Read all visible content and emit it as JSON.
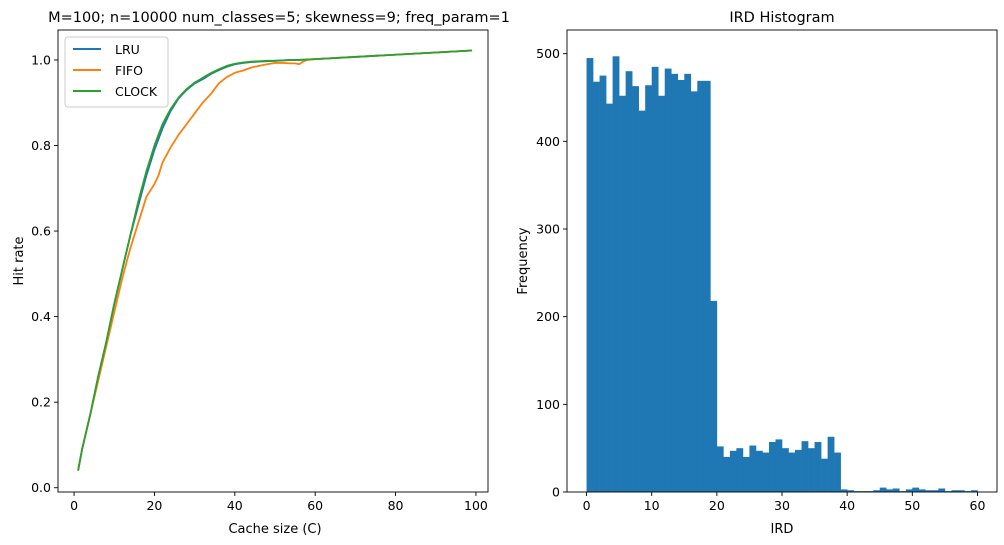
{
  "chart_data": [
    {
      "type": "line",
      "title": "M=100; n=10000 num_classes=5; skewness=9; freq_param=1",
      "xlabel": "Cache size (C)",
      "ylabel": "Hit rate",
      "xlim": [
        -4,
        103
      ],
      "ylim": [
        -0.01,
        1.07
      ],
      "xticks": [
        0,
        20,
        40,
        60,
        80,
        100
      ],
      "xtick_labels": [
        "0",
        "20",
        "40",
        "60",
        "80",
        "100"
      ],
      "yticks": [
        0.0,
        0.2,
        0.4,
        0.6,
        0.8,
        1.0
      ],
      "ytick_labels": [
        "0.0",
        "0.2",
        "0.4",
        "0.6",
        "0.8",
        "1.0"
      ],
      "grid": false,
      "legend_position": "upper-left",
      "series": [
        {
          "name": "LRU",
          "color": "#1f77b4",
          "x": [
            1,
            2,
            4,
            6,
            8,
            10,
            12,
            14,
            16,
            18,
            20,
            22,
            24,
            26,
            28,
            30,
            32,
            34,
            36,
            38,
            40,
            42,
            44,
            46,
            48,
            50,
            52,
            54,
            56,
            58,
            60,
            99
          ],
          "y": [
            0.04,
            0.09,
            0.17,
            0.26,
            0.34,
            0.43,
            0.51,
            0.59,
            0.66,
            0.73,
            0.79,
            0.84,
            0.88,
            0.91,
            0.93,
            0.945,
            0.955,
            0.967,
            0.976,
            0.984,
            0.99,
            0.993,
            0.995,
            0.996,
            0.997,
            0.998,
            0.999,
            1.0,
            1.0,
            1.001,
            1.002,
            1.022
          ]
        },
        {
          "name": "FIFO",
          "color": "#ff7f0e",
          "x": [
            1,
            2,
            4,
            6,
            8,
            10,
            12,
            14,
            16,
            18,
            20,
            21,
            22,
            24,
            26,
            28,
            30,
            32,
            34,
            36,
            38,
            40,
            42,
            44,
            46,
            48,
            50,
            52,
            54,
            55,
            56,
            57,
            58,
            60,
            99
          ],
          "y": [
            0.04,
            0.09,
            0.17,
            0.25,
            0.33,
            0.41,
            0.49,
            0.56,
            0.62,
            0.68,
            0.71,
            0.73,
            0.76,
            0.795,
            0.825,
            0.85,
            0.875,
            0.9,
            0.92,
            0.945,
            0.96,
            0.97,
            0.975,
            0.982,
            0.986,
            0.99,
            0.993,
            0.993,
            0.992,
            0.992,
            0.99,
            0.996,
            1.0,
            1.002,
            1.022
          ]
        },
        {
          "name": "CLOCK",
          "color": "#2ca02c",
          "x": [
            1,
            2,
            4,
            6,
            8,
            10,
            12,
            14,
            16,
            18,
            20,
            22,
            24,
            26,
            28,
            30,
            32,
            34,
            36,
            38,
            40,
            42,
            44,
            46,
            48,
            50,
            52,
            54,
            56,
            58,
            60,
            99
          ],
          "y": [
            0.04,
            0.09,
            0.17,
            0.26,
            0.34,
            0.43,
            0.51,
            0.59,
            0.67,
            0.74,
            0.8,
            0.85,
            0.885,
            0.912,
            0.932,
            0.947,
            0.958,
            0.969,
            0.978,
            0.986,
            0.991,
            0.994,
            0.996,
            0.997,
            0.998,
            0.998,
            0.999,
            1.0,
            1.0,
            1.001,
            1.002,
            1.022
          ]
        }
      ]
    },
    {
      "type": "bar",
      "title": "IRD Histogram",
      "xlabel": "IRD",
      "ylabel": "Frequency",
      "xlim": [
        -3,
        63
      ],
      "ylim": [
        0,
        527
      ],
      "xticks": [
        0,
        10,
        20,
        30,
        40,
        50,
        60
      ],
      "xtick_labels": [
        "0",
        "10",
        "20",
        "30",
        "40",
        "50",
        "60"
      ],
      "yticks": [
        0,
        100,
        200,
        300,
        400,
        500
      ],
      "ytick_labels": [
        "0",
        "100",
        "200",
        "300",
        "400",
        "500"
      ],
      "grid": false,
      "color": "#1f77b4",
      "bin_start": 0,
      "bin_width": 1,
      "values": [
        495,
        468,
        475,
        443,
        497,
        452,
        480,
        463,
        435,
        464,
        485,
        452,
        483,
        477,
        470,
        477,
        457,
        469,
        469,
        218,
        52,
        40,
        47,
        50,
        40,
        53,
        47,
        45,
        57,
        60,
        50,
        45,
        48,
        58,
        50,
        57,
        38,
        63,
        45,
        3,
        2,
        1,
        1,
        1,
        2,
        5,
        3,
        4,
        1,
        3,
        5,
        3,
        2,
        2,
        4,
        1,
        2,
        2,
        1,
        2
      ]
    }
  ]
}
